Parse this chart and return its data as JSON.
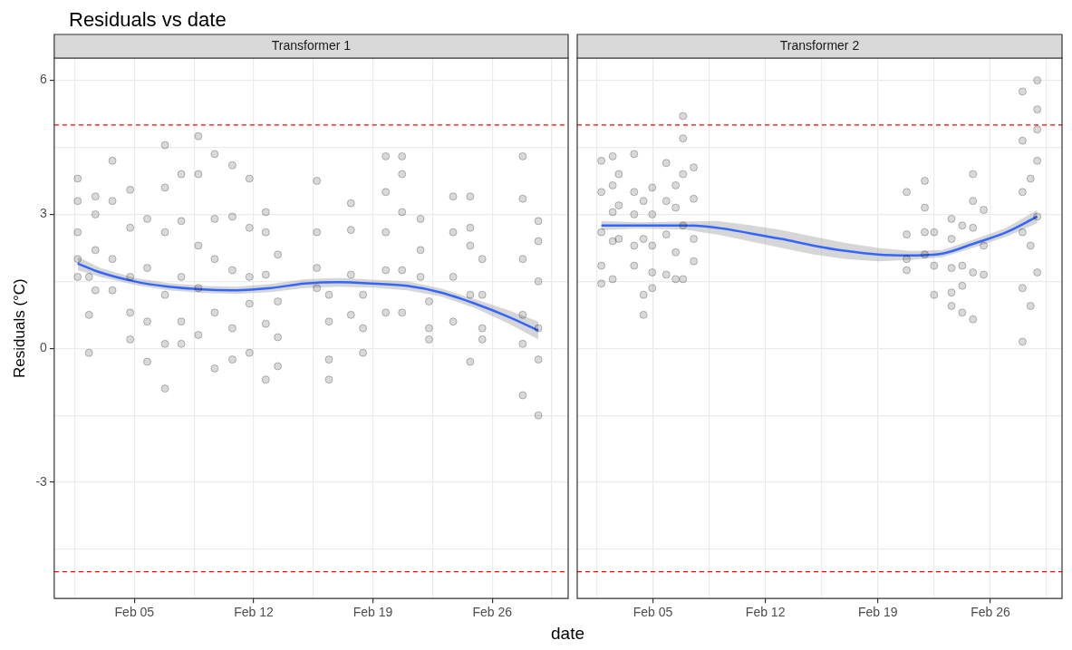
{
  "chart_data": [
    {
      "type": "scatter",
      "title": "Residuals vs date",
      "subtitle": "Transformer 1",
      "xlabel": "date",
      "ylabel": "Residuals (°C)",
      "xlim": [
        "--01-31T07:00",
        "--03-02T11:00"
      ],
      "xticks": [
        {
          "value": "--02-01T12:00",
          "label": null
        },
        {
          "value": "--02-05",
          "label": "Feb 05"
        },
        {
          "value": "--02-08T12:00",
          "label": null
        },
        {
          "value": "--02-12",
          "label": "Feb 12"
        },
        {
          "value": "--02-15T12:00",
          "label": null
        },
        {
          "value": "--02-19",
          "label": "Feb 19"
        },
        {
          "value": "--02-22T12:00",
          "label": null
        },
        {
          "value": "--02-26",
          "label": "Feb 26"
        },
        {
          "value": "--03-01T12:00",
          "label": null
        }
      ],
      "ylim": [
        -5.6,
        6.5
      ],
      "yticks": [
        {
          "value": -4.5,
          "label": null
        },
        -3,
        {
          "value": -1.5,
          "label": null
        },
        0,
        {
          "value": 1.5,
          "label": null
        },
        3,
        {
          "value": 4.5,
          "label": null
        },
        6
      ],
      "grid": true,
      "ref_lines": [
        {
          "axis": "y",
          "value": 5,
          "color": "#ff0000",
          "line_style": "dashed"
        },
        {
          "axis": "y",
          "value": -5,
          "color": "#ff0000",
          "line_style": "dashed"
        }
      ],
      "series": [
        {
          "color": "#000000",
          "marker": "circle",
          "x": [
            "--02-01T16:00",
            "--02-01T16:00",
            "--02-01T16:00",
            "--02-01T16:00",
            "--02-01T16:00",
            "--02-02T08:00",
            "--02-02T08:00",
            "--02-02T08:00",
            "--02-02T17:00",
            "--02-02T17:00",
            "--02-02T17:00",
            "--02-02T17:00",
            "--02-03T17:00",
            "--02-03T17:00",
            "--02-03T17:00",
            "--02-03T17:00",
            "--02-04T18:00",
            "--02-04T18:00",
            "--02-04T18:00",
            "--02-04T18:00",
            "--02-04T18:00",
            "--02-05T18:00",
            "--02-05T18:00",
            "--02-05T18:00",
            "--02-05T18:00",
            "--02-06T19:00",
            "--02-06T19:00",
            "--02-06T19:00",
            "--02-06T19:00",
            "--02-06T19:00",
            "--02-06T19:00",
            "--02-07T18:00",
            "--02-07T18:00",
            "--02-07T18:00",
            "--02-07T18:00",
            "--02-07T18:00",
            "--02-08T18:00",
            "--02-08T18:00",
            "--02-08T18:00",
            "--02-08T18:00",
            "--02-08T18:00",
            "--02-09T17:00",
            "--02-09T17:00",
            "--02-09T17:00",
            "--02-09T17:00",
            "--02-09T17:00",
            "--02-10T18:00",
            "--02-10T18:00",
            "--02-10T18:00",
            "--02-10T18:00",
            "--02-10T18:00",
            "--02-11T18:00",
            "--02-11T18:00",
            "--02-11T18:00",
            "--02-11T18:00",
            "--02-11T18:00",
            "--02-12T17:00",
            "--02-12T17:00",
            "--02-12T17:00",
            "--02-12T17:00",
            "--02-12T17:00",
            "--02-13T10:00",
            "--02-13T10:00",
            "--02-13T10:00",
            "--02-13T10:00",
            "--02-15T17:00",
            "--02-15T17:00",
            "--02-15T17:00",
            "--02-15T17:00",
            "--02-16T10:00",
            "--02-16T10:00",
            "--02-16T10:00",
            "--02-16T10:00",
            "--02-17T17:00",
            "--02-17T17:00",
            "--02-17T17:00",
            "--02-17T17:00",
            "--02-18T10:00",
            "--02-18T10:00",
            "--02-18T10:00",
            "--02-19T18:00",
            "--02-19T18:00",
            "--02-19T18:00",
            "--02-19T18:00",
            "--02-19T18:00",
            "--02-20T17:00",
            "--02-20T17:00",
            "--02-20T17:00",
            "--02-20T17:00",
            "--02-20T17:00",
            "--02-21T19:00",
            "--02-21T19:00",
            "--02-21T19:00",
            "--02-22T07:00",
            "--02-22T07:00",
            "--02-22T07:00",
            "--02-23T17:00",
            "--02-23T17:00",
            "--02-23T17:00",
            "--02-23T17:00",
            "--02-24T17:00",
            "--02-24T17:00",
            "--02-24T17:00",
            "--02-24T17:00",
            "--02-24T17:00",
            "--02-25T10:00",
            "--02-25T10:00",
            "--02-25T10:00",
            "--02-25T10:00",
            "--02-27T19:00",
            "--02-27T19:00",
            "--02-27T19:00",
            "--02-27T19:00",
            "--02-27T19:00",
            "--02-27T19:00",
            "--02-28T17:00",
            "--02-28T17:00",
            "--02-28T17:00",
            "--02-28T17:00",
            "--02-28T17:00",
            "--02-28T17:00"
          ],
          "values": [
            3.8,
            3.3,
            2.6,
            2.0,
            1.6,
            1.6,
            0.75,
            -0.1,
            3.4,
            3.0,
            2.2,
            1.3,
            4.2,
            3.3,
            2.0,
            1.3,
            3.55,
            2.7,
            1.6,
            0.8,
            0.2,
            2.9,
            1.8,
            0.6,
            -0.3,
            4.55,
            3.6,
            2.6,
            1.2,
            0.1,
            -0.9,
            3.9,
            2.85,
            1.6,
            0.6,
            0.1,
            4.75,
            3.9,
            2.3,
            1.35,
            0.3,
            4.35,
            2.9,
            2.0,
            0.8,
            -0.45,
            4.1,
            2.95,
            1.75,
            0.45,
            -0.25,
            3.8,
            2.7,
            1.6,
            1.0,
            -0.1,
            3.05,
            2.6,
            1.65,
            0.55,
            -0.7,
            2.1,
            1.05,
            0.25,
            -0.4,
            3.75,
            2.6,
            1.8,
            1.35,
            1.2,
            0.6,
            -0.25,
            -0.7,
            3.25,
            2.65,
            1.65,
            0.75,
            1.2,
            0.45,
            -0.1,
            4.3,
            3.5,
            2.6,
            1.75,
            0.8,
            4.3,
            3.9,
            3.05,
            1.75,
            0.8,
            2.9,
            2.2,
            1.6,
            1.05,
            0.45,
            0.2,
            3.4,
            2.6,
            1.6,
            0.6,
            3.4,
            2.7,
            2.3,
            1.2,
            -0.3,
            2.0,
            1.2,
            0.45,
            0.2,
            4.3,
            3.35,
            2.0,
            0.75,
            0.1,
            -1.05,
            2.85,
            2.4,
            1.5,
            0.45,
            -0.25,
            -1.5
          ]
        },
        {
          "type": "line",
          "color": "#3366ff",
          "x": [
            "--02-01T16:00",
            "--02-03",
            "--02-05",
            "--02-07",
            "--02-09",
            "--02-11",
            "--02-13",
            "--02-15",
            "--02-17",
            "--02-19",
            "--02-21",
            "--02-23",
            "--02-25",
            "--02-27",
            "--02-28T17:00"
          ],
          "values": [
            1.9,
            1.7,
            1.5,
            1.38,
            1.32,
            1.3,
            1.35,
            1.45,
            1.48,
            1.45,
            1.4,
            1.25,
            1.0,
            0.7,
            0.4
          ],
          "lower": [
            1.75,
            1.6,
            1.42,
            1.3,
            1.24,
            1.22,
            1.26,
            1.35,
            1.38,
            1.36,
            1.3,
            1.16,
            0.9,
            0.55,
            0.2
          ],
          "upper": [
            2.05,
            1.8,
            1.58,
            1.46,
            1.4,
            1.38,
            1.44,
            1.55,
            1.58,
            1.54,
            1.5,
            1.34,
            1.1,
            0.85,
            0.6
          ]
        }
      ]
    },
    {
      "type": "scatter",
      "subtitle": "Transformer 2",
      "tick_labels": "x",
      "xlim": [
        "--01-31T07:00",
        "--03-02T11:00"
      ],
      "xticks": [
        {
          "value": "--02-01T12:00",
          "label": null
        },
        {
          "value": "--02-05",
          "label": "Feb 05"
        },
        {
          "value": "--02-08T12:00",
          "label": null
        },
        {
          "value": "--02-12",
          "label": "Feb 12"
        },
        {
          "value": "--02-15T12:00",
          "label": null
        },
        {
          "value": "--02-19",
          "label": "Feb 19"
        },
        {
          "value": "--02-22T12:00",
          "label": null
        },
        {
          "value": "--02-26",
          "label": "Feb 26"
        },
        {
          "value": "--03-01T12:00",
          "label": null
        }
      ],
      "ylim": [
        -5.6,
        6.5
      ],
      "yticks": [
        {
          "value": -4.5,
          "label": null
        },
        -3,
        {
          "value": -1.5,
          "label": null
        },
        0,
        {
          "value": 1.5,
          "label": null
        },
        3,
        {
          "value": 4.5,
          "label": null
        },
        6
      ],
      "grid": true,
      "ref_lines": [
        {
          "axis": "y",
          "value": 5,
          "color": "#ff0000",
          "line_style": "dashed"
        },
        {
          "axis": "y",
          "value": -5,
          "color": "#ff0000",
          "line_style": "dashed"
        }
      ],
      "series": [
        {
          "color": "#000000",
          "marker": "circle",
          "x": [
            "--02-01T19:00",
            "--02-01T19:00",
            "--02-01T19:00",
            "--02-01T19:00",
            "--02-01T19:00",
            "--02-02T12:00",
            "--02-02T12:00",
            "--02-02T12:00",
            "--02-02T12:00",
            "--02-02T12:00",
            "--02-02T21:00",
            "--02-02T21:00",
            "--02-02T21:00",
            "--02-03T20:00",
            "--02-03T20:00",
            "--02-03T20:00",
            "--02-03T20:00",
            "--02-03T20:00",
            "--02-04T10:00",
            "--02-04T10:00",
            "--02-04T10:00",
            "--02-04T10:00",
            "--02-04T23:00",
            "--02-04T23:00",
            "--02-04T23:00",
            "--02-04T23:00",
            "--02-04T23:00",
            "--02-05T20:00",
            "--02-05T20:00",
            "--02-05T20:00",
            "--02-05T20:00",
            "--02-06T10:00",
            "--02-06T10:00",
            "--02-06T10:00",
            "--02-06T10:00",
            "--02-06T21:00",
            "--02-06T21:00",
            "--02-06T21:00",
            "--02-06T21:00",
            "--02-06T21:00",
            "--02-07T13:00",
            "--02-07T13:00",
            "--02-07T13:00",
            "--02-07T13:00",
            "--02-20T19:00",
            "--02-20T19:00",
            "--02-20T19:00",
            "--02-20T19:00",
            "--02-21T22:00",
            "--02-21T22:00",
            "--02-21T22:00",
            "--02-21T22:00",
            "--02-22T12:00",
            "--02-22T12:00",
            "--02-22T12:00",
            "--02-23T14:00",
            "--02-23T14:00",
            "--02-23T14:00",
            "--02-23T14:00",
            "--02-23T14:00",
            "--02-24T06:00",
            "--02-24T06:00",
            "--02-24T06:00",
            "--02-24T06:00",
            "--02-24T22:00",
            "--02-24T22:00",
            "--02-24T22:00",
            "--02-24T22:00",
            "--02-24T22:00",
            "--02-25T14:00",
            "--02-25T14:00",
            "--02-25T14:00",
            "--02-28T00:00",
            "--02-28T00:00",
            "--02-28T00:00",
            "--02-28T00:00",
            "--02-28T00:00",
            "--02-28T00:00",
            "--02-28T12:00",
            "--02-28T12:00",
            "--02-28T12:00",
            "--02-28T22:00",
            "--02-28T22:00",
            "--02-28T22:00",
            "--02-28T22:00",
            "--02-28T22:00",
            "--02-28T22:00"
          ],
          "values": [
            4.2,
            3.5,
            2.6,
            1.85,
            1.45,
            4.3,
            3.65,
            3.05,
            2.4,
            1.55,
            3.9,
            3.2,
            2.45,
            4.35,
            3.5,
            3.0,
            2.3,
            1.85,
            3.3,
            2.45,
            1.2,
            0.75,
            3.6,
            3.0,
            2.3,
            1.7,
            1.35,
            4.15,
            3.3,
            2.55,
            1.65,
            3.65,
            3.15,
            2.15,
            1.55,
            5.2,
            4.7,
            3.9,
            2.75,
            1.55,
            4.05,
            3.35,
            2.45,
            1.95,
            3.5,
            2.55,
            2.0,
            1.75,
            3.75,
            3.15,
            2.6,
            2.1,
            2.6,
            1.85,
            1.2,
            2.9,
            2.45,
            1.8,
            1.25,
            0.95,
            2.75,
            1.85,
            1.4,
            0.8,
            3.9,
            3.3,
            2.7,
            1.7,
            0.65,
            3.1,
            2.3,
            1.65,
            5.75,
            4.65,
            3.5,
            2.6,
            1.35,
            0.15,
            3.8,
            2.3,
            0.95,
            6.0,
            5.35,
            4.9,
            4.2,
            2.95,
            1.7
          ]
        },
        {
          "type": "line",
          "color": "#3366ff",
          "x": [
            "--02-01T19:00",
            "--02-04",
            "--02-07",
            "--02-09",
            "--02-11",
            "--02-13",
            "--02-15",
            "--02-17",
            "--02-19",
            "--02-21",
            "--02-23",
            "--02-25",
            "--02-27",
            "--02-28T22:00"
          ],
          "values": [
            2.75,
            2.75,
            2.75,
            2.7,
            2.58,
            2.45,
            2.3,
            2.18,
            2.1,
            2.08,
            2.12,
            2.35,
            2.6,
            2.95
          ],
          "lower": [
            2.65,
            2.68,
            2.66,
            2.55,
            2.4,
            2.25,
            2.1,
            2.0,
            1.95,
            1.98,
            2.04,
            2.26,
            2.5,
            2.8
          ],
          "upper": [
            2.85,
            2.82,
            2.84,
            2.85,
            2.76,
            2.65,
            2.5,
            2.36,
            2.25,
            2.18,
            2.2,
            2.44,
            2.7,
            3.1
          ]
        }
      ]
    }
  ]
}
